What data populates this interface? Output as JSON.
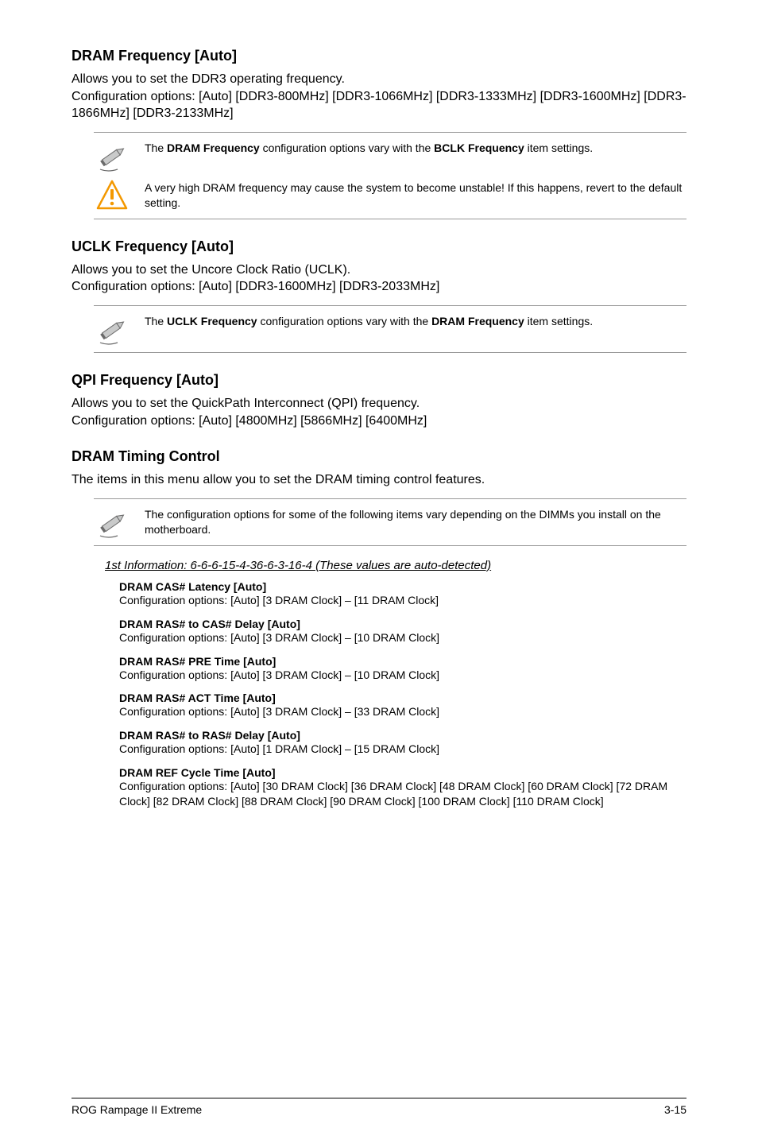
{
  "fontsize": {
    "heading": 18,
    "body": 16,
    "note": 14,
    "config_label": 14,
    "config_opts": 14,
    "sub_heading": 15,
    "footer": 14
  },
  "colors": {
    "text": "#000000",
    "background": "#ffffff",
    "rule": "#999999",
    "footer_rule": "#000000",
    "pencil_fill": "#c9caca",
    "pencil_stroke": "#6b6b6b",
    "warn_stroke": "#f39800",
    "warn_fill": "#ffffff",
    "warn_mark": "#f39800"
  },
  "sections": [
    {
      "heading": "DRAM Frequency [Auto]",
      "body": "Allows you to set the DDR3 operating frequency.\nConfiguration options: [Auto] [DDR3-800MHz] [DDR3-1066MHz] [DDR3-1333MHz] [DDR3-1600MHz] [DDR3-1866MHz] [DDR3-2133MHz]",
      "notes": [
        {
          "icon": "pencil",
          "html": "The <b>DRAM Frequency</b> configuration options vary with the <b>BCLK Frequency</b> item settings."
        },
        {
          "icon": "warn",
          "html": "A very high DRAM frequency may cause the system to become unstable! If this happens, revert to the default setting."
        }
      ]
    },
    {
      "heading": "UCLK Frequency [Auto]",
      "body": "Allows you to set the Uncore Clock Ratio (UCLK).\nConfiguration options: [Auto] [DDR3-1600MHz] [DDR3-2033MHz]",
      "notes": [
        {
          "icon": "pencil",
          "html": "The <b>UCLK Frequency</b> configuration options vary with the <b>DRAM Frequency</b> item settings."
        }
      ]
    },
    {
      "heading": "QPI Frequency [Auto]",
      "body": "Allows you to set the QuickPath Interconnect (QPI) frequency.\nConfiguration options: [Auto] [4800MHz] [5866MHz] [6400MHz]",
      "notes": []
    },
    {
      "heading": "DRAM Timing Control",
      "body": "The items in this menu allow you to set the DRAM timing control features.",
      "notes": [
        {
          "icon": "pencil",
          "html": "The configuration options for some of the following items vary depending on the DIMMs you install on the motherboard."
        }
      ]
    }
  ],
  "sub_heading": "1st Information: 6-6-6-15-4-36-6-3-16-4 (These values are auto-detected)",
  "config_items": [
    {
      "label": "DRAM CAS# Latency [Auto]",
      "opts": "Configuration options: [Auto] [3 DRAM Clock] – [11 DRAM Clock]"
    },
    {
      "label": "DRAM RAS# to CAS# Delay [Auto]",
      "opts": "Configuration options: [Auto] [3 DRAM Clock] – [10 DRAM Clock]"
    },
    {
      "label": "DRAM RAS# PRE Time [Auto]",
      "opts": "Configuration options: [Auto] [3 DRAM Clock] – [10 DRAM Clock]"
    },
    {
      "label": "DRAM RAS# ACT Time [Auto]",
      "opts": "Configuration options: [Auto] [3 DRAM Clock] – [33 DRAM Clock]"
    },
    {
      "label": "DRAM RAS# to RAS# Delay [Auto]",
      "opts": "Configuration options: [Auto] [1 DRAM Clock] – [15 DRAM Clock]"
    },
    {
      "label": "DRAM REF Cycle Time [Auto]",
      "opts": "Configuration options: [Auto] [30 DRAM Clock] [36 DRAM Clock] [48 DRAM Clock] [60 DRAM Clock] [72 DRAM Clock] [82 DRAM Clock] [88 DRAM Clock] [90 DRAM Clock] [100 DRAM Clock] [110 DRAM Clock]"
    }
  ],
  "footer": {
    "left": "ROG Rampage II Extreme",
    "right": "3-15"
  }
}
